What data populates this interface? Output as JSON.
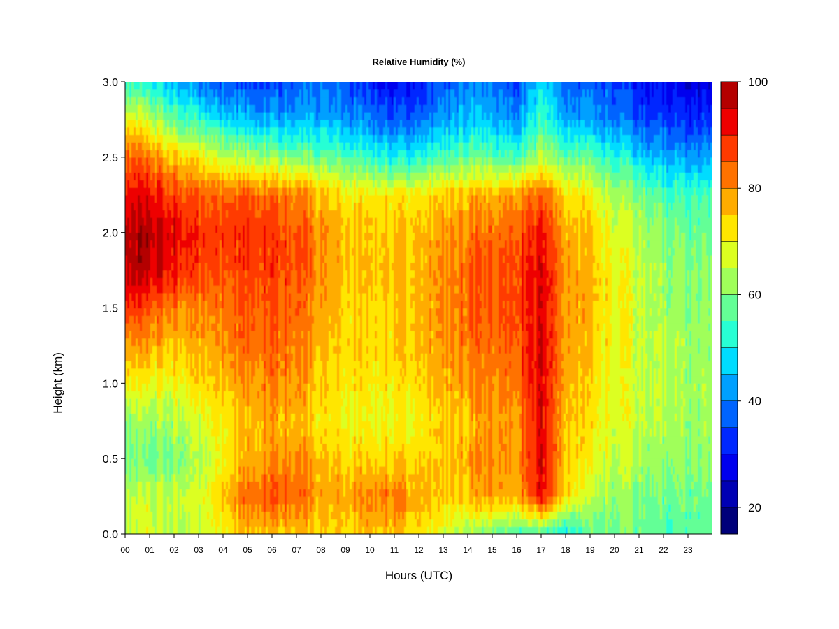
{
  "chart_data": {
    "type": "heatmap",
    "title": "Relative Humidity (%)",
    "xlabel": "Hours (UTC)",
    "ylabel": "Height (km)",
    "xlim": [
      0,
      24
    ],
    "ylim": [
      0,
      3
    ],
    "x_ticks": [
      "00",
      "01",
      "02",
      "03",
      "04",
      "05",
      "06",
      "07",
      "08",
      "09",
      "10",
      "11",
      "12",
      "13",
      "14",
      "15",
      "16",
      "17",
      "18",
      "19",
      "20",
      "21",
      "22",
      "23"
    ],
    "y_ticks": [
      "0.0",
      "0.5",
      "1.0",
      "1.5",
      "2.0",
      "2.5",
      "3.0"
    ],
    "colorbar": {
      "range": [
        15,
        100
      ],
      "ticks": [
        "20",
        "40",
        "60",
        "80",
        "100"
      ],
      "levels": [
        15,
        20,
        25,
        30,
        35,
        40,
        45,
        50,
        55,
        60,
        65,
        70,
        75,
        80,
        85,
        90,
        95,
        100
      ],
      "colors": [
        "#00007a",
        "#0000b4",
        "#0000ee",
        "#0028ff",
        "#0064ff",
        "#00a0ff",
        "#00dcff",
        "#28ffd4",
        "#64ff96",
        "#a0ff5a",
        "#dcff20",
        "#ffe600",
        "#ffac00",
        "#ff7200",
        "#ff3a00",
        "#ee0000",
        "#b40000",
        "#7a0000"
      ]
    },
    "grid": false,
    "height_km": [
      0.0,
      0.25,
      0.5,
      0.75,
      1.0,
      1.25,
      1.5,
      1.75,
      2.0,
      2.25,
      2.5,
      2.75,
      3.0
    ],
    "hours": [
      0,
      1,
      2,
      3,
      4,
      5,
      6,
      7,
      8,
      9,
      10,
      11,
      12,
      13,
      14,
      15,
      16,
      17,
      18,
      19,
      20,
      21,
      22,
      23,
      24
    ],
    "relative_humidity": [
      [
        66,
        67,
        66,
        64,
        70,
        76,
        76,
        76,
        74,
        74,
        76,
        76,
        72,
        66,
        62,
        58,
        56,
        54,
        50,
        56,
        58,
        58,
        56,
        56,
        56
      ],
      [
        66,
        66,
        66,
        66,
        76,
        84,
        86,
        84,
        78,
        78,
        82,
        82,
        78,
        74,
        76,
        78,
        78,
        92,
        74,
        64,
        62,
        60,
        58,
        58,
        58
      ],
      [
        60,
        58,
        60,
        62,
        70,
        78,
        80,
        80,
        76,
        74,
        74,
        74,
        74,
        74,
        78,
        80,
        80,
        94,
        76,
        70,
        66,
        64,
        62,
        60,
        60
      ],
      [
        62,
        62,
        64,
        66,
        72,
        76,
        78,
        76,
        72,
        70,
        70,
        70,
        70,
        74,
        76,
        78,
        80,
        94,
        76,
        72,
        68,
        66,
        64,
        62,
        62
      ],
      [
        72,
        70,
        70,
        72,
        76,
        80,
        82,
        80,
        74,
        72,
        72,
        72,
        74,
        76,
        80,
        80,
        84,
        94,
        78,
        72,
        68,
        66,
        64,
        62,
        62
      ],
      [
        80,
        78,
        76,
        76,
        80,
        84,
        84,
        82,
        76,
        74,
        74,
        74,
        76,
        78,
        82,
        82,
        86,
        94,
        80,
        74,
        70,
        66,
        64,
        62,
        62
      ],
      [
        90,
        86,
        82,
        80,
        82,
        86,
        86,
        84,
        78,
        74,
        74,
        74,
        76,
        80,
        84,
        84,
        88,
        94,
        80,
        76,
        70,
        66,
        62,
        60,
        60
      ],
      [
        98,
        96,
        92,
        86,
        86,
        88,
        88,
        86,
        80,
        76,
        76,
        76,
        76,
        80,
        84,
        84,
        88,
        94,
        80,
        76,
        70,
        66,
        62,
        60,
        60
      ],
      [
        98,
        98,
        94,
        88,
        88,
        90,
        88,
        86,
        80,
        76,
        76,
        76,
        76,
        78,
        82,
        82,
        86,
        92,
        78,
        74,
        68,
        64,
        60,
        58,
        58
      ],
      [
        94,
        92,
        88,
        84,
        84,
        86,
        84,
        82,
        76,
        72,
        72,
        72,
        72,
        74,
        76,
        76,
        80,
        84,
        74,
        70,
        64,
        60,
        56,
        54,
        54
      ],
      [
        86,
        82,
        76,
        70,
        66,
        64,
        62,
        60,
        58,
        56,
        54,
        50,
        52,
        54,
        58,
        56,
        56,
        64,
        58,
        56,
        52,
        48,
        44,
        42,
        42
      ],
      [
        72,
        66,
        58,
        52,
        48,
        46,
        44,
        44,
        44,
        42,
        40,
        36,
        38,
        42,
        46,
        44,
        42,
        54,
        44,
        42,
        40,
        36,
        34,
        32,
        32
      ],
      [
        54,
        50,
        44,
        38,
        36,
        34,
        34,
        36,
        38,
        36,
        32,
        28,
        30,
        36,
        40,
        38,
        36,
        48,
        38,
        36,
        34,
        30,
        28,
        26,
        26
      ]
    ]
  }
}
